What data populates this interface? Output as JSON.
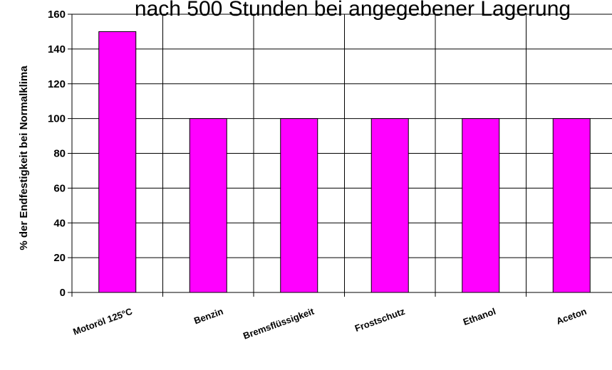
{
  "chart_data": {
    "type": "bar",
    "title": "nach 500 Stunden bei angegebener Lagerung",
    "ylabel": "% der Endfestigkeit bei Normalklima",
    "xlabel": "",
    "categories": [
      "Motoröl 125°C",
      "Benzin",
      "Bremsflüssigkeit",
      "Frostschutz",
      "Ethanol",
      "Aceton"
    ],
    "values": [
      150,
      100,
      100,
      100,
      100,
      100
    ],
    "ylim": [
      0,
      160
    ],
    "yticks": [
      0,
      20,
      40,
      60,
      80,
      100,
      120,
      140,
      160
    ],
    "grid": true,
    "bar_color": "#ff00ff"
  }
}
